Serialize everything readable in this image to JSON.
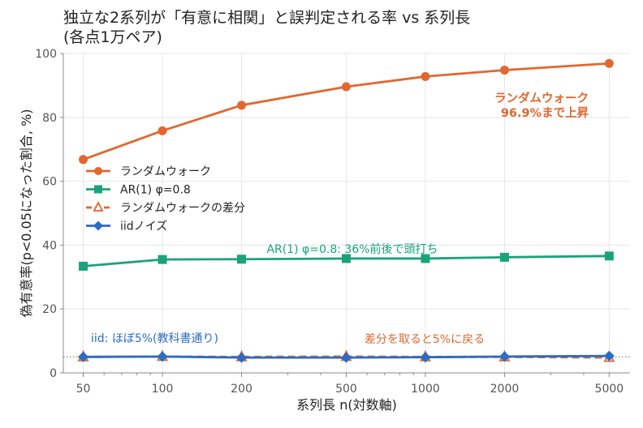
{
  "chart_data": {
    "type": "line",
    "title_line1": "独立な2系列が「有意に相関」と誤判定される率 vs 系列長",
    "title_line2": "(各点1万ペア)",
    "xlabel": "系列長 n(対数軸)",
    "ylabel": "偽有意率(p<0.05になった割合, %)",
    "x_scale": "log",
    "x": [
      50,
      100,
      200,
      500,
      1000,
      2000,
      5000
    ],
    "x_tick_labels": [
      "50",
      "100",
      "200",
      "500",
      "1000",
      "2000",
      "5000"
    ],
    "ylim": [
      0,
      100
    ],
    "y_ticks": [
      0,
      20,
      40,
      60,
      80,
      100
    ],
    "y_tick_labels": [
      "0",
      "20",
      "40",
      "60",
      "80",
      "100"
    ],
    "grid": true,
    "legend_position": "center-left",
    "reference_line": {
      "y": 5,
      "style": "dotted"
    },
    "series": [
      {
        "name": "ランダムウォーク",
        "color": "#e2672f",
        "marker": "circle",
        "line": "solid",
        "values": [
          66.8,
          75.8,
          83.8,
          89.6,
          92.8,
          94.8,
          96.9
        ]
      },
      {
        "name": "AR(1) φ=0.8",
        "color": "#1aa37a",
        "marker": "square",
        "line": "solid",
        "values": [
          33.4,
          35.5,
          35.6,
          35.8,
          35.8,
          36.2,
          36.6
        ]
      },
      {
        "name": "ランダムウォークの差分",
        "color": "#e2672f",
        "marker": "triangle-open",
        "line": "dashed",
        "values": [
          5.0,
          5.1,
          5.0,
          5.1,
          5.0,
          5.0,
          4.8
        ]
      },
      {
        "name": "iidノイズ",
        "color": "#2b6cc4",
        "marker": "diamond",
        "line": "solid",
        "values": [
          5.0,
          5.1,
          4.8,
          4.8,
          4.9,
          5.1,
          5.3
        ]
      }
    ],
    "annotations": [
      {
        "text": "ランダムウォーク\n96.9%まで上昇",
        "color": "#e2672f"
      },
      {
        "text": "AR(1) φ=0.8: 36%前後で頭打ち",
        "color": "#1aa37a"
      },
      {
        "text": "iid: ほぼ5%(教科書通り)",
        "color": "#2b6cc4"
      },
      {
        "text": "差分を取ると5%に戻る",
        "color": "#e2672f"
      }
    ]
  }
}
